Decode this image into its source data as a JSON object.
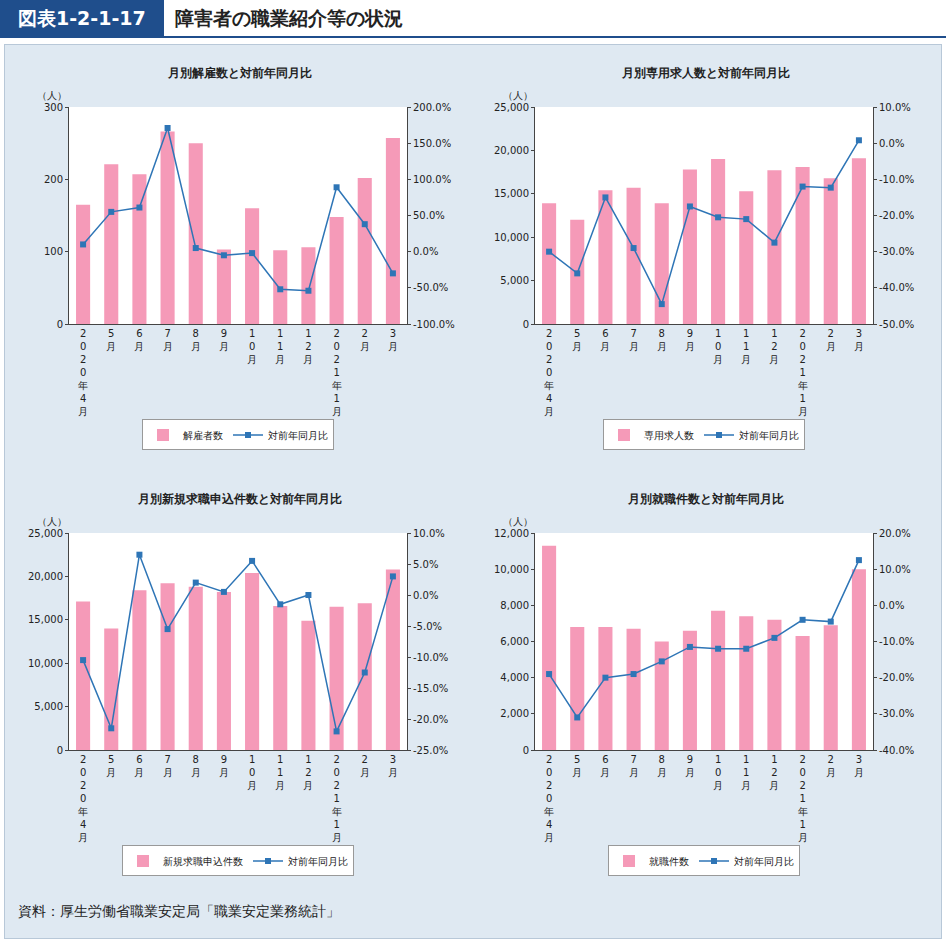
{
  "header": {
    "label": "図表1-2-1-17",
    "title": "障害者の職業紹介等の状況"
  },
  "source": "資料：厚生労働省職業安定局「職業安定業務統計」",
  "chart_data": [
    {
      "type": "bar",
      "title": "月別解雇数と対前年同月比",
      "ylabel": "（人）",
      "categories": [
        "2020年4月",
        "5月",
        "6月",
        "7月",
        "8月",
        "9月",
        "10月",
        "11月",
        "12月",
        "2021年1月",
        "2月",
        "3月"
      ],
      "series": [
        {
          "name": "解雇者数",
          "type": "bar",
          "color": "#f59ab8",
          "values": [
            165,
            221,
            207,
            266,
            250,
            103,
            160,
            102,
            106,
            148,
            202,
            257
          ]
        },
        {
          "name": "対前年同月比",
          "type": "line",
          "axis": "y2",
          "marker": "square",
          "color": "#2e75b6",
          "values": [
            10,
            55,
            61,
            171,
            5,
            -5,
            -2,
            -52,
            -54,
            89,
            38,
            -30
          ]
        }
      ],
      "ylim": [
        0,
        300
      ],
      "yticks": [
        0,
        100,
        200,
        300
      ],
      "y2lim": [
        -100,
        200
      ],
      "y2ticks": [
        {
          "value": -100,
          "label": "-100.0%"
        },
        {
          "value": -50,
          "label": "-50.0%"
        },
        {
          "value": 0,
          "label": "0.0%"
        },
        {
          "value": 50,
          "label": "50.0%"
        },
        {
          "value": 100,
          "label": "100.0%"
        },
        {
          "value": 150,
          "label": "150.0%"
        },
        {
          "value": 200,
          "label": "200.0%"
        }
      ],
      "grid": false,
      "legend": "bottom"
    },
    {
      "type": "bar",
      "title": "月別専用求人数と対前年同月比",
      "ylabel": "（人）",
      "categories": [
        "2020年4月",
        "5月",
        "6月",
        "7月",
        "8月",
        "9月",
        "10月",
        "11月",
        "12月",
        "2021年1月",
        "2月",
        "3月"
      ],
      "series": [
        {
          "name": "専用求人数",
          "type": "bar",
          "color": "#f59ab8",
          "values": [
            13900,
            12000,
            15400,
            15700,
            13900,
            17800,
            19000,
            15300,
            17700,
            18100,
            16800,
            19100
          ]
        },
        {
          "name": "対前年同月比",
          "type": "line",
          "axis": "y2",
          "marker": "square",
          "color": "#2e75b6",
          "values": [
            -30,
            -36,
            -15,
            -29,
            -44.5,
            -17.5,
            -20.5,
            -21,
            -27.5,
            -12,
            -12.3,
            0.8
          ]
        }
      ],
      "ylim": [
        0,
        25000
      ],
      "yticks": [
        0,
        {
          "value": 5000,
          "label": "5,000"
        },
        {
          "value": 10000,
          "label": "10,000"
        },
        {
          "value": 15000,
          "label": "15,000"
        },
        {
          "value": 20000,
          "label": "20,000"
        },
        {
          "value": 25000,
          "label": "25,000"
        }
      ],
      "y2lim": [
        -50,
        10
      ],
      "y2ticks": [
        {
          "value": -50,
          "label": "-50.0%"
        },
        {
          "value": -40,
          "label": "-40.0%"
        },
        {
          "value": -30,
          "label": "-30.0%"
        },
        {
          "value": -20,
          "label": "-20.0%"
        },
        {
          "value": -10,
          "label": "-10.0%"
        },
        {
          "value": 0,
          "label": "0.0%"
        },
        {
          "value": 10,
          "label": "10.0%"
        }
      ],
      "grid": false,
      "legend": "bottom"
    },
    {
      "type": "bar",
      "title": "月別新規求職申込件数と対前年同月比",
      "ylabel": "（人）",
      "categories": [
        "2020年4月",
        "5月",
        "6月",
        "7月",
        "8月",
        "9月",
        "10月",
        "11月",
        "12月",
        "2021年1月",
        "2月",
        "3月"
      ],
      "series": [
        {
          "name": "新規求職申込件数",
          "type": "bar",
          "color": "#f59ab8",
          "values": [
            17100,
            14000,
            18400,
            19200,
            18800,
            18200,
            20400,
            16600,
            14900,
            16500,
            16900,
            20800
          ]
        },
        {
          "name": "対前年同月比",
          "type": "line",
          "axis": "y2",
          "marker": "square",
          "color": "#2e75b6",
          "values": [
            -10.5,
            -21.5,
            6.5,
            -5.5,
            2,
            0.5,
            5.5,
            -1.5,
            0,
            -22,
            -12.5,
            3
          ]
        }
      ],
      "ylim": [
        0,
        25000
      ],
      "yticks": [
        0,
        {
          "value": 5000,
          "label": "5,000"
        },
        {
          "value": 10000,
          "label": "10,000"
        },
        {
          "value": 15000,
          "label": "15,000"
        },
        {
          "value": 20000,
          "label": "20,000"
        },
        {
          "value": 25000,
          "label": "25,000"
        }
      ],
      "y2lim": [
        -25,
        10
      ],
      "y2ticks": [
        {
          "value": -25,
          "label": "-25.0%"
        },
        {
          "value": -20,
          "label": "-20.0%"
        },
        {
          "value": -15,
          "label": "-15.0%"
        },
        {
          "value": -10,
          "label": "-10.0%"
        },
        {
          "value": -5,
          "label": "-5.0%"
        },
        {
          "value": 0,
          "label": "0.0%"
        },
        {
          "value": 5,
          "label": "5.0%"
        },
        {
          "value": 10,
          "label": "10.0%"
        }
      ],
      "grid": false,
      "legend": "bottom"
    },
    {
      "type": "bar",
      "title": "月別就職件数と対前年同月比",
      "ylabel": "（人）",
      "categories": [
        "2020年4月",
        "5月",
        "6月",
        "7月",
        "8月",
        "9月",
        "10月",
        "11月",
        "12月",
        "2021年1月",
        "2月",
        "3月"
      ],
      "series": [
        {
          "name": "就職件数",
          "type": "bar",
          "color": "#f59ab8",
          "values": [
            11300,
            6800,
            6800,
            6700,
            6000,
            6600,
            7700,
            7400,
            7200,
            6300,
            6900,
            10000
          ]
        },
        {
          "name": "対前年同月比",
          "type": "line",
          "axis": "y2",
          "marker": "square",
          "color": "#2e75b6",
          "values": [
            -19,
            -31,
            -20,
            -19,
            -15.5,
            -11.5,
            -12,
            -12,
            -9,
            -4,
            -4.5,
            12.5
          ]
        }
      ],
      "ylim": [
        0,
        12000
      ],
      "yticks": [
        0,
        {
          "value": 2000,
          "label": "2,000"
        },
        {
          "value": 4000,
          "label": "4,000"
        },
        {
          "value": 6000,
          "label": "6,000"
        },
        {
          "value": 8000,
          "label": "8,000"
        },
        {
          "value": 10000,
          "label": "10,000"
        },
        {
          "value": 12000,
          "label": "12,000"
        }
      ],
      "y2lim": [
        -40,
        20
      ],
      "y2ticks": [
        {
          "value": -40,
          "label": "-40.0%"
        },
        {
          "value": -30,
          "label": "-30.0%"
        },
        {
          "value": -20,
          "label": "-20.0%"
        },
        {
          "value": -10,
          "label": "-10.0%"
        },
        {
          "value": 0,
          "label": "0.0%"
        },
        {
          "value": 10,
          "label": "10.0%"
        },
        {
          "value": 20,
          "label": "20.0%"
        }
      ],
      "grid": false,
      "legend": "bottom"
    }
  ]
}
